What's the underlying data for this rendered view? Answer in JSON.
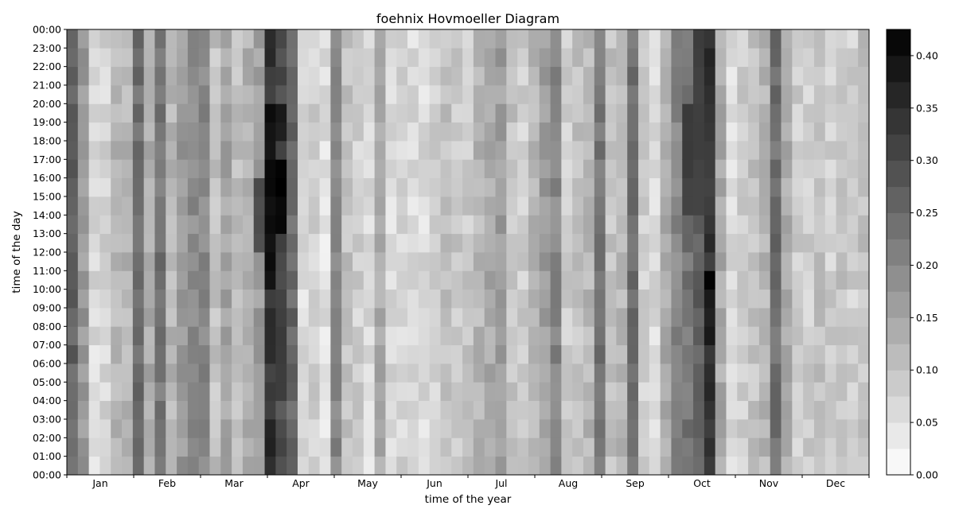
{
  "chart_data": {
    "type": "heatmap",
    "title": "foehnix Hovmoeller Diagram",
    "xlabel": "time of the year",
    "ylabel": "time of the day",
    "x_tick_labels": [
      "Jan",
      "Feb",
      "Mar",
      "Apr",
      "May",
      "Jun",
      "Jul",
      "Aug",
      "Sep",
      "Oct",
      "Nov",
      "Dec"
    ],
    "y_tick_labels": [
      "00:00",
      "01:00",
      "02:00",
      "03:00",
      "04:00",
      "05:00",
      "06:00",
      "07:00",
      "08:00",
      "09:00",
      "10:00",
      "11:00",
      "12:00",
      "13:00",
      "14:00",
      "15:00",
      "16:00",
      "17:00",
      "18:00",
      "19:00",
      "20:00",
      "21:00",
      "22:00",
      "23:00",
      "00:00"
    ],
    "colorbar_ticks": [
      "0.00",
      "0.05",
      "0.10",
      "0.15",
      "0.20",
      "0.25",
      "0.30",
      "0.35",
      "0.40"
    ],
    "colorbar_range": [
      0,
      0.425
    ],
    "colormap": "gray_r",
    "n_columns": 73,
    "n_rows": 24,
    "column_profile": [
      [
        0,
        0.26
      ],
      [
        1,
        0.17
      ],
      [
        2,
        0.06
      ],
      [
        3,
        0.07
      ],
      [
        4,
        0.12
      ],
      [
        5,
        0.12
      ],
      [
        6,
        0.24
      ],
      [
        7,
        0.14
      ],
      [
        8,
        0.23
      ],
      [
        9,
        0.12
      ],
      [
        10,
        0.17
      ],
      [
        11,
        0.19
      ],
      [
        12,
        0.2
      ],
      [
        13,
        0.1
      ],
      [
        14,
        0.15
      ],
      [
        15,
        0.1
      ],
      [
        16,
        0.13
      ],
      [
        17,
        0.16
      ],
      [
        18,
        0.34
      ],
      [
        19,
        0.3
      ],
      [
        20,
        0.25
      ],
      [
        21,
        0.06
      ],
      [
        22,
        0.08
      ],
      [
        23,
        0.05
      ],
      [
        24,
        0.2
      ],
      [
        25,
        0.1
      ],
      [
        26,
        0.08
      ],
      [
        27,
        0.06
      ],
      [
        28,
        0.14
      ],
      [
        29,
        0.06
      ],
      [
        30,
        0.07
      ],
      [
        31,
        0.06
      ],
      [
        32,
        0.06
      ],
      [
        33,
        0.08
      ],
      [
        34,
        0.1
      ],
      [
        35,
        0.09
      ],
      [
        36,
        0.09
      ],
      [
        37,
        0.12
      ],
      [
        38,
        0.14
      ],
      [
        39,
        0.16
      ],
      [
        40,
        0.1
      ],
      [
        41,
        0.08
      ],
      [
        42,
        0.12
      ],
      [
        43,
        0.16
      ],
      [
        44,
        0.2
      ],
      [
        45,
        0.08
      ],
      [
        46,
        0.1
      ],
      [
        47,
        0.12
      ],
      [
        48,
        0.23
      ],
      [
        49,
        0.1
      ],
      [
        50,
        0.12
      ],
      [
        51,
        0.24
      ],
      [
        52,
        0.08
      ],
      [
        53,
        0.06
      ],
      [
        54,
        0.14
      ],
      [
        55,
        0.2
      ],
      [
        56,
        0.23
      ],
      [
        57,
        0.26
      ],
      [
        58,
        0.34
      ],
      [
        59,
        0.14
      ],
      [
        60,
        0.06
      ],
      [
        61,
        0.08
      ],
      [
        62,
        0.1
      ],
      [
        63,
        0.12
      ],
      [
        64,
        0.24
      ],
      [
        65,
        0.14
      ],
      [
        66,
        0.08
      ],
      [
        67,
        0.08
      ],
      [
        68,
        0.1
      ],
      [
        69,
        0.08
      ],
      [
        70,
        0.1
      ],
      [
        71,
        0.08
      ],
      [
        72,
        0.1
      ]
    ],
    "highlights": [
      {
        "column": 18,
        "hour_from": 10,
        "hour_to": 20,
        "value": 0.4
      },
      {
        "column": 19,
        "hour_from": 13,
        "hour_to": 17,
        "value": 0.42
      },
      {
        "column": 19,
        "hour_from": 18,
        "hour_to": 20,
        "value": 0.38
      },
      {
        "column": 20,
        "hour_from": 10,
        "hour_to": 11,
        "value": 0.26
      },
      {
        "column": 58,
        "hour_from": 7,
        "hour_to": 11,
        "value": 0.38
      },
      {
        "column": 58,
        "hour_from": 10,
        "hour_to": 11,
        "value": 0.42
      },
      {
        "column": 17,
        "hour_from": 12,
        "hour_to": 16,
        "value": 0.3
      },
      {
        "column": 56,
        "hour_from": 14,
        "hour_to": 20,
        "value": 0.32
      },
      {
        "column": 57,
        "hour_from": 14,
        "hour_to": 24,
        "value": 0.32
      }
    ]
  }
}
